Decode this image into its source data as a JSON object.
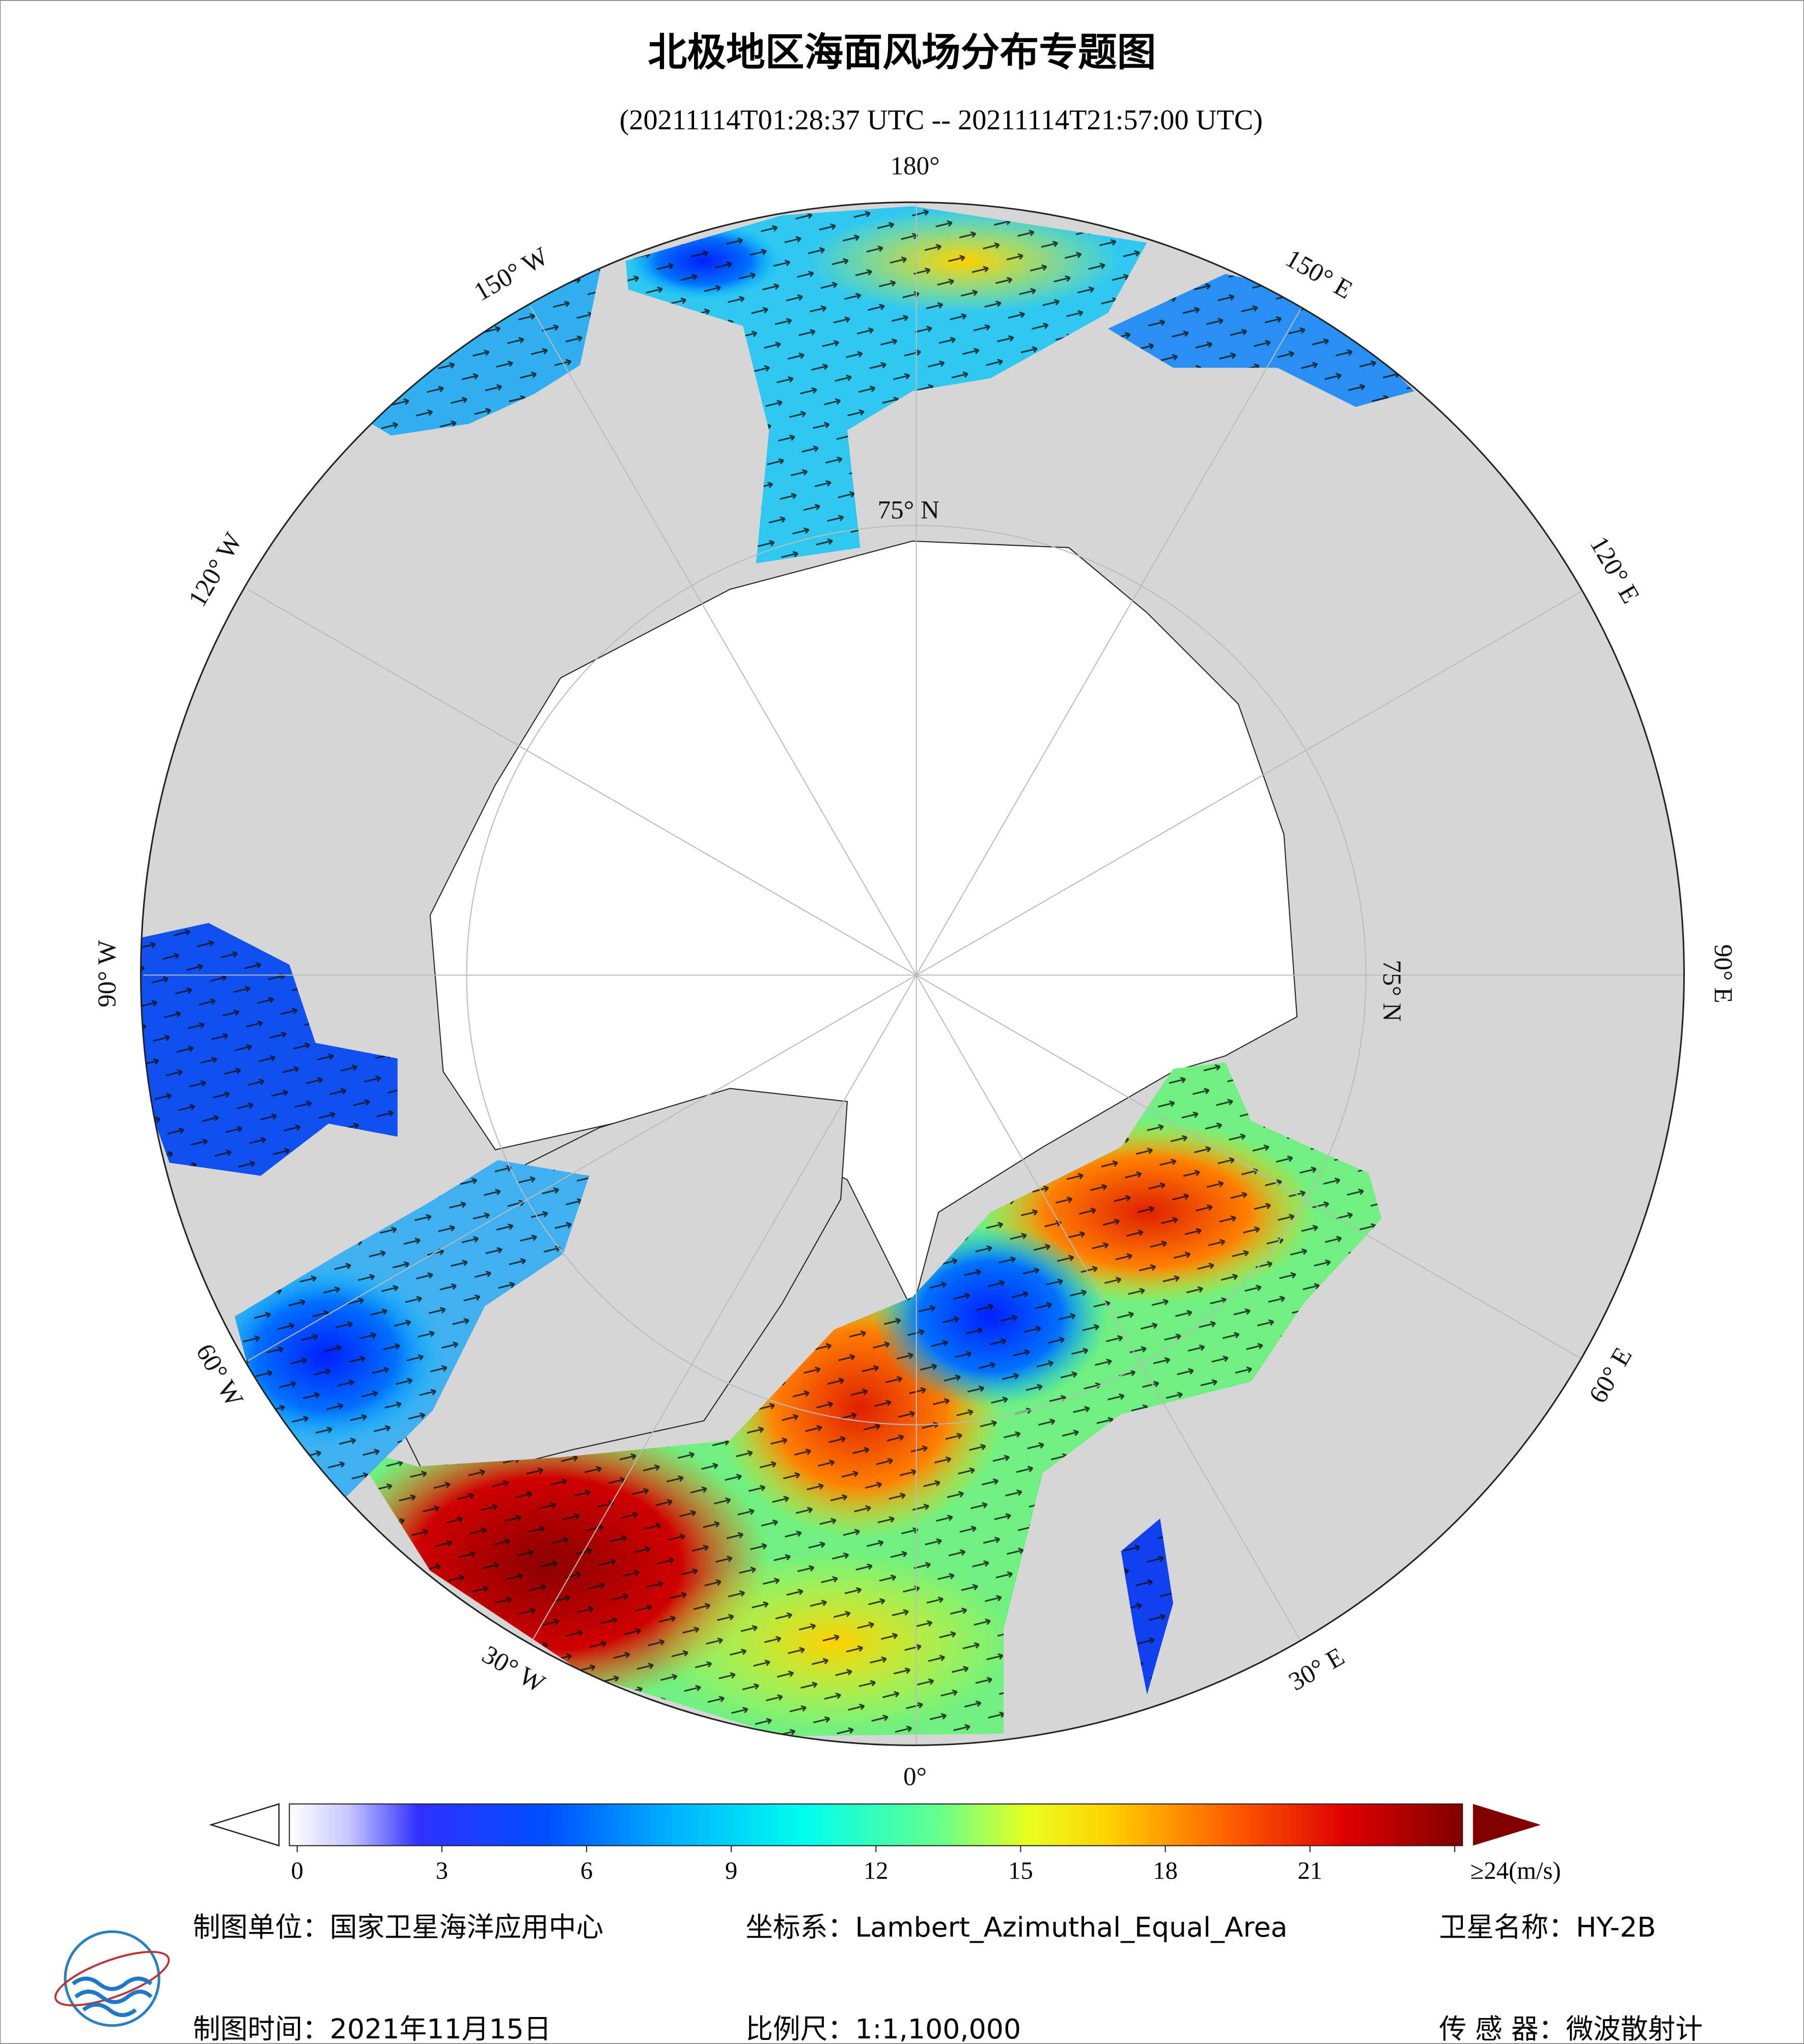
{
  "title": "北极地区海面风场分布专题图",
  "subtitle": "(20211114T01:28:37 UTC -- 20211114T21:57:00 UTC)",
  "map": {
    "longitude_labels": [
      "180°",
      "150° E",
      "120° E",
      "90° E",
      "60° E",
      "30° E",
      "0°",
      "30° W",
      "60° W",
      "90° W",
      "120° W",
      "150° W"
    ],
    "latitude_labels": [
      "75° N",
      "75° N"
    ]
  },
  "colorbar": {
    "lim": [
      0,
      24
    ],
    "ticks": [
      0,
      3,
      6,
      9,
      12,
      15,
      18,
      21,
      {
        "value": 24,
        "label": "≥24(m/s)"
      }
    ]
  },
  "footer": {
    "unit_label": "制图单位：",
    "unit": "国家卫星海洋应用中心",
    "crs_label": "坐标系：",
    "crs": "Lambert_Azimuthal_Equal_Area",
    "satellite_label": "卫星名称：",
    "satellite": "HY-2B",
    "date_label": "制图时间：",
    "date": "2021年11月15日",
    "scale_label": "比例尺：",
    "scale": "1:1,100,000",
    "sensor_label": "传 感 器：",
    "sensor": "微波散射计"
  }
}
